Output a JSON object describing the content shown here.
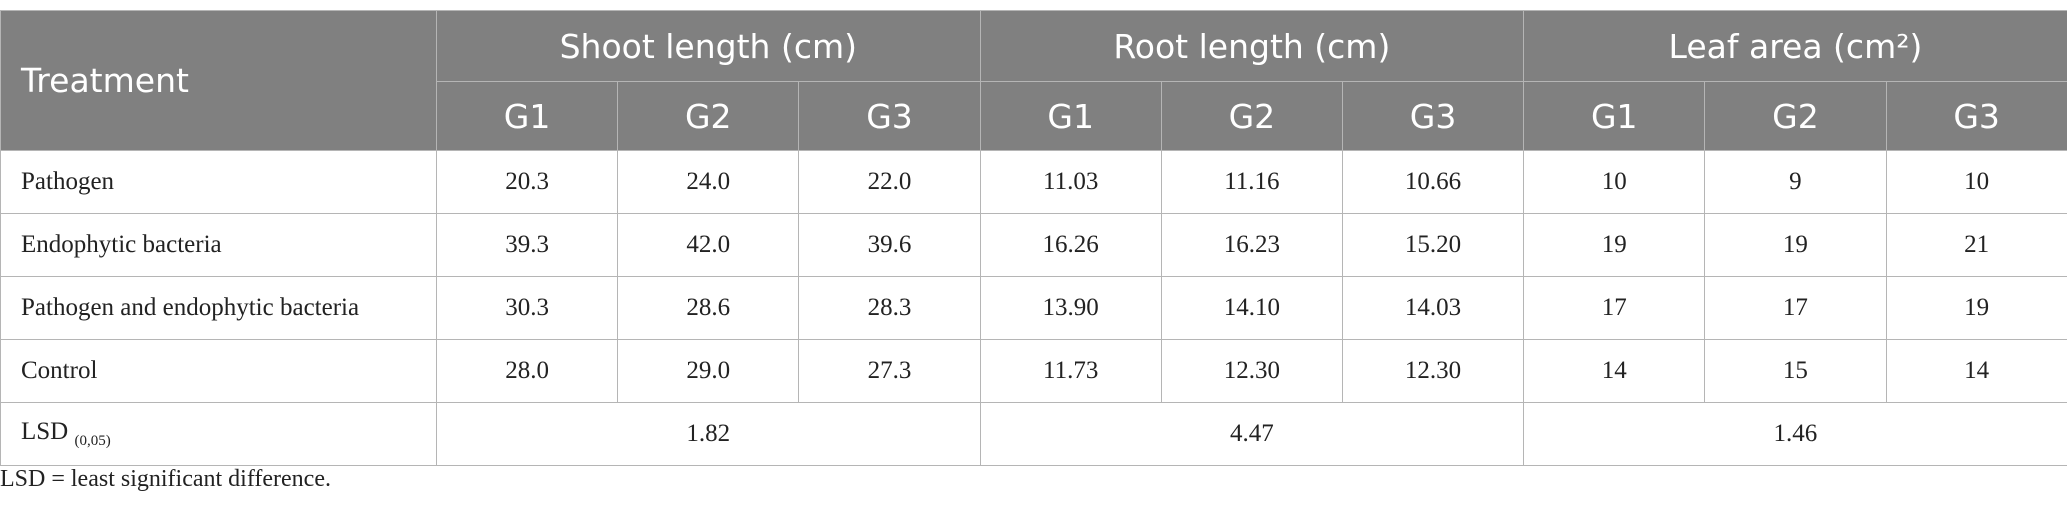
{
  "table": {
    "header": {
      "treatment": "Treatment",
      "groups": [
        "Shoot length (cm)",
        "Root length (cm)",
        "Leaf area (cm²)"
      ],
      "subheaders": [
        [
          "G1",
          "G2",
          "G3"
        ],
        [
          "G1",
          "G2",
          "G3"
        ],
        [
          "G1",
          "G2",
          "G3"
        ]
      ]
    },
    "rows": [
      [
        "Pathogen",
        "20.3",
        "24.0",
        "22.0",
        "11.03",
        "11.16",
        "10.66",
        "10",
        "9",
        "10"
      ],
      [
        "Endophytic bacteria",
        "39.3",
        "42.0",
        "39.6",
        "16.26",
        "16.23",
        "15.20",
        "19",
        "19",
        "21"
      ],
      [
        "Pathogen and endophytic bacteria",
        "30.3",
        "28.6",
        "28.3",
        "13.90",
        "14.10",
        "14.03",
        "17",
        "17",
        "19"
      ],
      [
        "Control",
        "28.0",
        "29.0",
        "27.3",
        "11.73",
        "12.30",
        "12.30",
        "14",
        "15",
        "14"
      ]
    ],
    "lsd": {
      "label": "LSD",
      "subscript": "(0,05)",
      "values": [
        "1.82",
        "4.47",
        "1.46"
      ]
    }
  },
  "footnote": "LSD = least significant difference."
}
